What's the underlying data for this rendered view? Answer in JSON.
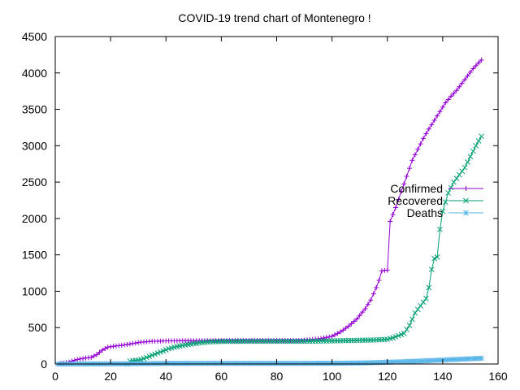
{
  "chart_data": {
    "type": "line",
    "title": "COVID-19 trend chart of Montenegro !",
    "xlabel": "",
    "ylabel": "",
    "xlim": [
      0,
      160
    ],
    "ylim": [
      0,
      4500
    ],
    "xticks": [
      0,
      20,
      40,
      60,
      80,
      100,
      120,
      140,
      160
    ],
    "yticks": [
      0,
      500,
      1000,
      1500,
      2000,
      2500,
      3000,
      3500,
      4000,
      4500
    ],
    "grid": false,
    "legend_position": "right",
    "series": [
      {
        "name": "Confirmed",
        "color": "#9400d3",
        "marker": "plus",
        "points": [
          [
            1,
            2
          ],
          [
            3,
            14
          ],
          [
            5,
            27
          ],
          [
            7,
            52
          ],
          [
            9,
            70
          ],
          [
            11,
            82
          ],
          [
            13,
            91
          ],
          [
            15,
            130
          ],
          [
            17,
            190
          ],
          [
            19,
            232
          ],
          [
            22,
            248
          ],
          [
            25,
            262
          ],
          [
            28,
            282
          ],
          [
            31,
            300
          ],
          [
            35,
            312
          ],
          [
            40,
            318
          ],
          [
            50,
            320
          ],
          [
            60,
            322
          ],
          [
            70,
            322
          ],
          [
            80,
            322
          ],
          [
            88,
            322
          ],
          [
            92,
            335
          ],
          [
            96,
            350
          ],
          [
            100,
            380
          ],
          [
            103,
            440
          ],
          [
            106,
            520
          ],
          [
            109,
            620
          ],
          [
            112,
            760
          ],
          [
            114,
            880
          ],
          [
            116,
            1050
          ],
          [
            117,
            1150
          ],
          [
            118,
            1280
          ],
          [
            119,
            1285
          ],
          [
            120,
            1290
          ],
          [
            121,
            1960
          ],
          [
            123,
            2150
          ],
          [
            125,
            2370
          ],
          [
            127,
            2580
          ],
          [
            129,
            2800
          ],
          [
            131,
            2950
          ],
          [
            133,
            3100
          ],
          [
            135,
            3230
          ],
          [
            137,
            3350
          ],
          [
            139,
            3470
          ],
          [
            141,
            3590
          ],
          [
            143,
            3680
          ],
          [
            145,
            3760
          ],
          [
            147,
            3860
          ],
          [
            149,
            3960
          ],
          [
            151,
            4060
          ],
          [
            153,
            4140
          ],
          [
            154,
            4178
          ]
        ]
      },
      {
        "name": "Recovered",
        "color": "#009e73",
        "marker": "cross",
        "points": [
          [
            26,
            0
          ],
          [
            27,
            40
          ],
          [
            29,
            50
          ],
          [
            31,
            60
          ],
          [
            33,
            90
          ],
          [
            35,
            120
          ],
          [
            37,
            150
          ],
          [
            39,
            180
          ],
          [
            41,
            210
          ],
          [
            44,
            240
          ],
          [
            47,
            262
          ],
          [
            50,
            280
          ],
          [
            53,
            295
          ],
          [
            56,
            305
          ],
          [
            60,
            310
          ],
          [
            70,
            312
          ],
          [
            80,
            312
          ],
          [
            90,
            312
          ],
          [
            95,
            315
          ],
          [
            100,
            318
          ],
          [
            105,
            322
          ],
          [
            110,
            326
          ],
          [
            115,
            330
          ],
          [
            118,
            335
          ],
          [
            120,
            340
          ],
          [
            122,
            360
          ],
          [
            124,
            390
          ],
          [
            126,
            420
          ],
          [
            128,
            530
          ],
          [
            130,
            700
          ],
          [
            132,
            800
          ],
          [
            134,
            900
          ],
          [
            135,
            1050
          ],
          [
            136,
            1300
          ],
          [
            137,
            1450
          ],
          [
            138,
            1470
          ],
          [
            139,
            1850
          ],
          [
            140,
            2100
          ],
          [
            142,
            2350
          ],
          [
            144,
            2500
          ],
          [
            146,
            2600
          ],
          [
            148,
            2700
          ],
          [
            150,
            2850
          ],
          [
            152,
            3000
          ],
          [
            154,
            3130
          ]
        ]
      },
      {
        "name": "Deaths",
        "color": "#56b4e9",
        "marker": "star",
        "points": [
          [
            1,
            0
          ],
          [
            10,
            1
          ],
          [
            20,
            2
          ],
          [
            30,
            5
          ],
          [
            40,
            8
          ],
          [
            50,
            9
          ],
          [
            60,
            9
          ],
          [
            70,
            9
          ],
          [
            80,
            9
          ],
          [
            90,
            9
          ],
          [
            100,
            10
          ],
          [
            110,
            14
          ],
          [
            115,
            18
          ],
          [
            120,
            24
          ],
          [
            125,
            30
          ],
          [
            130,
            38
          ],
          [
            135,
            46
          ],
          [
            140,
            55
          ],
          [
            145,
            63
          ],
          [
            150,
            72
          ],
          [
            154,
            78
          ]
        ]
      }
    ]
  }
}
